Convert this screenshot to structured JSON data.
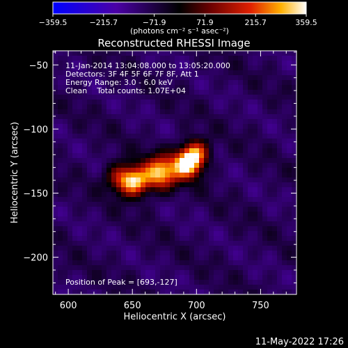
{
  "chart_data": {
    "type": "heatmap",
    "title": "Reconstructed RHESSI Image",
    "xlabel": "Heliocentric X (arcsec)",
    "ylabel": "Heliocentric Y (arcsec)",
    "xlim": [
      588,
      778
    ],
    "ylim": [
      -229,
      -39
    ],
    "x_ticks": [
      600,
      650,
      700,
      750
    ],
    "y_ticks": [
      -50,
      -100,
      -150,
      -200
    ],
    "x_tick_labels": [
      "600",
      "650",
      "700",
      "750"
    ],
    "y_tick_labels": [
      "−50",
      "−100",
      "−150",
      "−200"
    ],
    "colorbar": {
      "range": [
        -359.5,
        359.5
      ],
      "tick_values": [
        -359.5,
        -215.7,
        -71.9,
        71.9,
        215.7,
        359.5
      ],
      "tick_labels": [
        "−359.5",
        "−215.7",
        "−71.9",
        "71.9",
        "215.7",
        "359.5"
      ],
      "unit_label": "(photons cm⁻² s⁻¹ asec⁻²)"
    },
    "sources": [
      {
        "x": 693,
        "y": -127,
        "amp": 359.5,
        "sigma": 8
      },
      {
        "x": 672,
        "y": -134,
        "amp": 300,
        "sigma": 9
      },
      {
        "x": 652,
        "y": -141,
        "amp": 290,
        "sigma": 8
      },
      {
        "x": 640,
        "y": -138,
        "amp": 110,
        "sigma": 8
      },
      {
        "x": 700,
        "y": -118,
        "amp": 170,
        "sigma": 7
      }
    ],
    "annotations": [
      "11-Jan-2014 13:04:08.000 to 13:05:20.000",
      "Detectors: 3F 4F 5F 6F 7F 8F, Att 1",
      "Energy Range: 3.0 - 6.0 keV",
      "Clean    Total counts: 1.07E+04"
    ],
    "peak_label": "Position of Peak = [693,-127]"
  },
  "footer": {
    "timestamp": "11-May-2022 17:26"
  }
}
